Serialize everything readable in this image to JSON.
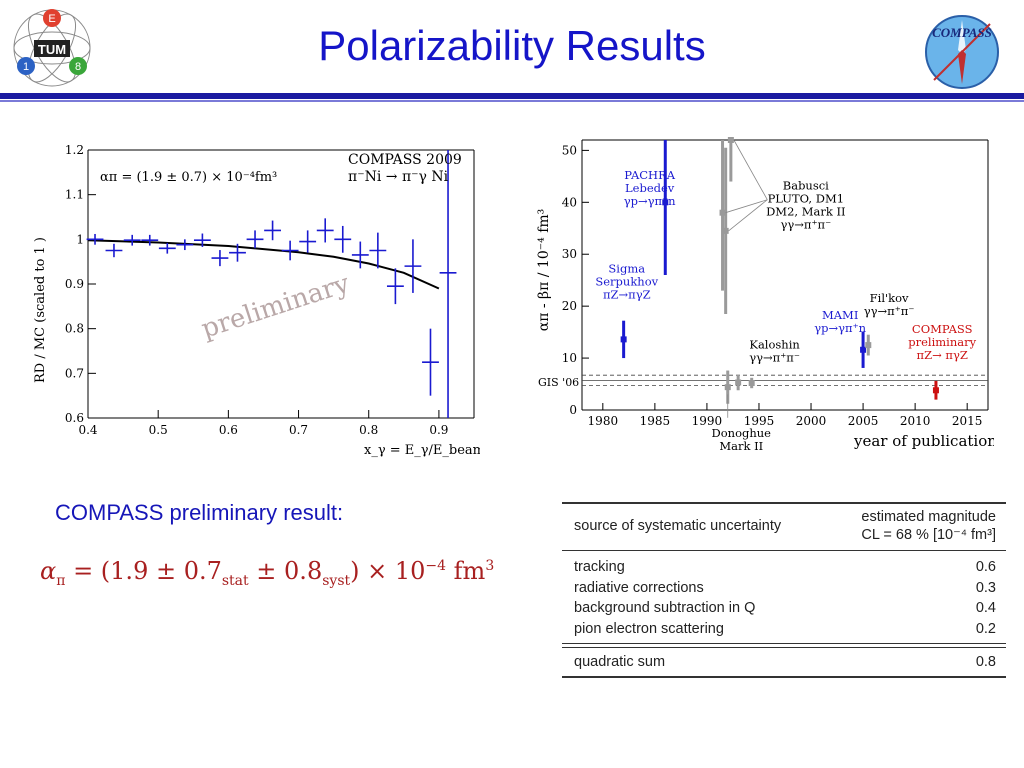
{
  "slide": {
    "title": "Polarizability Results",
    "result_label": "COMPASS preliminary result:",
    "formula": {
      "lhs": "α",
      "lhs_sub": "π",
      "value": "= (1.9 ± 0.7",
      "stat": "stat",
      "syst_part": " ± 0.8",
      "syst": "syst",
      "tail": ") × 10",
      "exp": "−4",
      "unit": " fm",
      "unit_exp": "3"
    },
    "logos": {
      "left": {
        "letters": [
          "E",
          "TUM",
          "1",
          "8"
        ]
      },
      "right": {
        "text": "COMPASS"
      }
    }
  },
  "colors": {
    "title": "#1515c8",
    "header_bar": "#1a1aa0",
    "data_blue": "#1a1ad0",
    "fit_black": "#000000",
    "compass_red": "#cc1111",
    "grey_points": "#9a9a9a",
    "watermark": "#b9a8a8"
  },
  "systematics_table": {
    "header_left": "source of systematic uncertainty",
    "header_right_line1": "estimated magnitude",
    "header_right_line2": "CL = 68 %   [10⁻⁴ fm³]",
    "rows": [
      {
        "label": "tracking",
        "value": "0.6"
      },
      {
        "label": "radiative corrections",
        "value": "0.3"
      },
      {
        "label": "background subtraction in Q",
        "value": "0.4"
      },
      {
        "label": "pion electron scattering",
        "value": "0.2"
      }
    ],
    "sum_label": "quadratic sum",
    "sum_value": "0.8"
  },
  "chart_data": [
    {
      "type": "scatter",
      "title": "COMPASS 2009",
      "subtitle": "π⁻Ni → π⁻γ Ni",
      "annotation": "απ = (1.9 ± 0.7) × 10⁻⁴fm³",
      "watermark": "preliminary",
      "xlabel": "x_γ = E_γ/E_beam",
      "ylabel": "RD / MC  (scaled to 1 )",
      "xlim": [
        0.4,
        0.95
      ],
      "ylim": [
        0.6,
        1.2
      ],
      "x_ticks": [
        "0.4",
        "0.5",
        "0.6",
        "0.7",
        "0.8",
        "0.9"
      ],
      "y_ticks": [
        "0.6",
        "0.7",
        "0.8",
        "0.9",
        "1",
        "1.1",
        "1.2"
      ],
      "series": [
        {
          "points": [
            {
              "x": 0.41,
              "y": 1.0,
              "xerr": 0.012,
              "yerr": 0.012
            },
            {
              "x": 0.437,
              "y": 0.975,
              "xerr": 0.012,
              "yerr": 0.015
            },
            {
              "x": 0.463,
              "y": 0.998,
              "xerr": 0.012,
              "yerr": 0.012
            },
            {
              "x": 0.488,
              "y": 0.998,
              "xerr": 0.012,
              "yerr": 0.012
            },
            {
              "x": 0.513,
              "y": 0.98,
              "xerr": 0.012,
              "yerr": 0.012
            },
            {
              "x": 0.538,
              "y": 0.988,
              "xerr": 0.012,
              "yerr": 0.012
            },
            {
              "x": 0.563,
              "y": 0.998,
              "xerr": 0.012,
              "yerr": 0.015
            },
            {
              "x": 0.588,
              "y": 0.958,
              "xerr": 0.012,
              "yerr": 0.018
            },
            {
              "x": 0.613,
              "y": 0.97,
              "xerr": 0.012,
              "yerr": 0.02
            },
            {
              "x": 0.638,
              "y": 1.0,
              "xerr": 0.012,
              "yerr": 0.02
            },
            {
              "x": 0.663,
              "y": 1.02,
              "xerr": 0.012,
              "yerr": 0.022
            },
            {
              "x": 0.688,
              "y": 0.975,
              "xerr": 0.012,
              "yerr": 0.022
            },
            {
              "x": 0.713,
              "y": 0.995,
              "xerr": 0.012,
              "yerr": 0.025
            },
            {
              "x": 0.738,
              "y": 1.02,
              "xerr": 0.012,
              "yerr": 0.027
            },
            {
              "x": 0.763,
              "y": 1.0,
              "xerr": 0.012,
              "yerr": 0.03
            },
            {
              "x": 0.788,
              "y": 0.965,
              "xerr": 0.012,
              "yerr": 0.03
            },
            {
              "x": 0.813,
              "y": 0.975,
              "xerr": 0.012,
              "yerr": 0.04
            },
            {
              "x": 0.838,
              "y": 0.895,
              "xerr": 0.012,
              "yerr": 0.04
            },
            {
              "x": 0.863,
              "y": 0.94,
              "xerr": 0.012,
              "yerr": 0.06
            },
            {
              "x": 0.888,
              "y": 0.725,
              "xerr": 0.012,
              "yerr": 0.075
            },
            {
              "x": 0.913,
              "y": 0.925,
              "xerr": 0.012,
              "yerr": 0.33
            }
          ]
        }
      ],
      "fit_curve": {
        "x": [
          0.4,
          0.5,
          0.6,
          0.7,
          0.75,
          0.8,
          0.85,
          0.9
        ],
        "y": [
          0.998,
          0.993,
          0.985,
          0.971,
          0.961,
          0.946,
          0.925,
          0.89
        ]
      }
    },
    {
      "type": "scatter",
      "xlabel": "year of publication",
      "ylabel": "απ - βπ / 10⁻⁴ fm³",
      "xlim": [
        1978,
        2017
      ],
      "ylim": [
        0,
        52
      ],
      "x_ticks": [
        "1980",
        "1985",
        "1990",
        "1995",
        "2000",
        "2005",
        "2010",
        "2015"
      ],
      "y_ticks": [
        "0",
        "10",
        "20",
        "30",
        "40",
        "50"
      ],
      "gis_band": {
        "label": "GIS '06",
        "center": 5.7,
        "half_width": 1.0
      },
      "series": [
        {
          "name": "PACHRA",
          "color": "blue",
          "label_lines": [
            "PACHRA",
            "Lebedev",
            "γp→γπ⁺n"
          ],
          "points": [
            {
              "x": 1986,
              "y": 40,
              "err": 14
            }
          ]
        },
        {
          "name": "Sigma",
          "color": "blue",
          "label_lines": [
            "Sigma",
            "Serpukhov",
            "πZ→πγZ"
          ],
          "points": [
            {
              "x": 1982,
              "y": 13.6,
              "err": 3.6
            }
          ]
        },
        {
          "name": "MAMI",
          "color": "blue",
          "label_lines": [
            "MAMI",
            "γp→γπ⁺n"
          ],
          "points": [
            {
              "x": 2005,
              "y": 11.6,
              "err": 3.5
            }
          ]
        },
        {
          "name": "Babusci",
          "color": "grey",
          "label_lines": [
            "Babusci",
            "PLUTO, DM1",
            "DM2, Mark II",
            "γγ→π⁺π⁻"
          ],
          "points": [
            {
              "x": 1991.5,
              "y": 38,
              "err": 15
            },
            {
              "x": 1991.8,
              "y": 34.5,
              "err": 16
            },
            {
              "x": 1992.3,
              "y": 52,
              "err": 8
            }
          ]
        },
        {
          "name": "Kaloshin",
          "color": "grey",
          "label_lines": [
            "Kaloshin",
            "γγ→π⁺π⁻"
          ],
          "points": [
            {
              "x": 1993,
              "y": 5.3,
              "err": 1.5
            },
            {
              "x": 1994.3,
              "y": 5.2,
              "err": 1.0
            }
          ]
        },
        {
          "name": "Donoghue",
          "color": "grey",
          "label_lines": [
            "Donoghue",
            "Mark II"
          ],
          "points": [
            {
              "x": 1992,
              "y": 4.4,
              "err": 3.2
            }
          ]
        },
        {
          "name": "Fil'kov",
          "color": "grey",
          "label_lines": [
            "Fil'kov",
            "γγ→π⁺π⁻"
          ],
          "points": [
            {
              "x": 2005.5,
              "y": 12.5,
              "err": 2.0
            }
          ]
        },
        {
          "name": "COMPASS",
          "color": "red",
          "label_lines": [
            "COMPASS",
            "preliminary",
            "πZ→ πγZ"
          ],
          "points": [
            {
              "x": 2012,
              "y": 3.8,
              "err": 1.8
            }
          ]
        }
      ]
    }
  ]
}
